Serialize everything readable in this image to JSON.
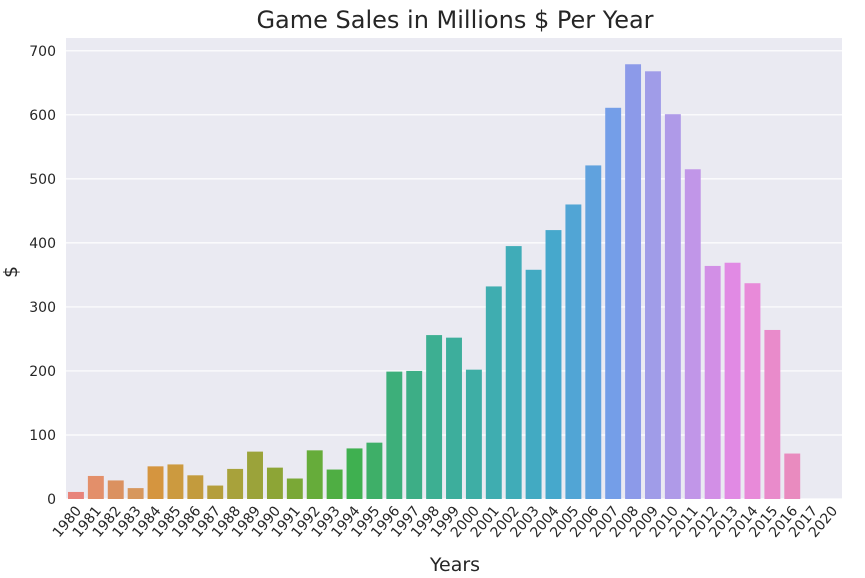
{
  "chart_data": {
    "type": "bar",
    "title": "Game Sales in Millions $ Per Year",
    "xlabel": "Years",
    "ylabel": "$",
    "ylim": [
      0,
      720
    ],
    "yticks": [
      0,
      100,
      200,
      300,
      400,
      500,
      600,
      700
    ],
    "grid": true,
    "categories": [
      "1980",
      "1981",
      "1982",
      "1983",
      "1984",
      "1985",
      "1986",
      "1987",
      "1988",
      "1989",
      "1990",
      "1991",
      "1992",
      "1993",
      "1994",
      "1995",
      "1996",
      "1997",
      "1998",
      "1999",
      "2000",
      "2001",
      "2002",
      "2003",
      "2004",
      "2005",
      "2006",
      "2007",
      "2008",
      "2009",
      "2010",
      "2011",
      "2012",
      "2013",
      "2014",
      "2015",
      "2016",
      "2017",
      "2020"
    ],
    "values": [
      11,
      36,
      29,
      17,
      51,
      54,
      37,
      21,
      47,
      74,
      49,
      32,
      76,
      46,
      79,
      88,
      199,
      200,
      256,
      252,
      202,
      332,
      395,
      358,
      420,
      460,
      521,
      611,
      679,
      668,
      601,
      515,
      364,
      369,
      337,
      264,
      71,
      0,
      0
    ],
    "colors": [
      "#e8837a",
      "#e38f6a",
      "#db9160",
      "#d7975d",
      "#d5953f",
      "#cc9a3f",
      "#c39b3d",
      "#b59e3b",
      "#a8a23b",
      "#9ba33a",
      "#8da536",
      "#7aa836",
      "#66ac3a",
      "#4fae43",
      "#3fb050",
      "#3eaf68",
      "#3daf7a",
      "#3dae86",
      "#3daf92",
      "#3dae9c",
      "#3eaea5",
      "#3fadb0",
      "#40acb8",
      "#42aac2",
      "#46a8cc",
      "#51a5d5",
      "#60a2de",
      "#749ee8",
      "#8c9ae9",
      "#a09ce8",
      "#af9ae8",
      "#c196e8",
      "#d28fe6",
      "#e18ae4",
      "#e88ad9",
      "#e98bcb",
      "#e98bbf",
      "#e98bb4",
      "#e98bb4"
    ],
    "plot_bg": "#eaeaf2",
    "grid_color": "#ffffff"
  }
}
